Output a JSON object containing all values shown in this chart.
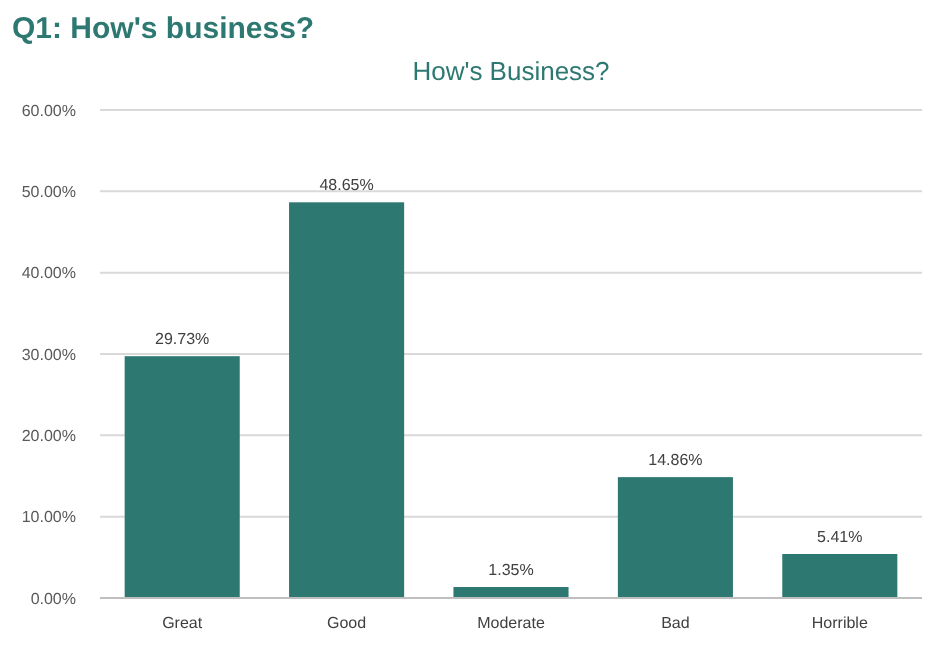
{
  "chart_data": {
    "type": "bar",
    "title": "Q1: How's business?",
    "subtitle": "How's Business?",
    "categories": [
      "Great",
      "Good",
      "Moderate",
      "Bad",
      "Horrible"
    ],
    "values": [
      29.73,
      48.65,
      1.35,
      14.86,
      5.41
    ],
    "value_labels": [
      "29.73%",
      "48.65%",
      "1.35%",
      "14.86%",
      "5.41%"
    ],
    "color": "#2e7872",
    "ylim": [
      0,
      60
    ],
    "yticks": [
      {
        "value": 0,
        "label": "0.00%"
      },
      {
        "value": 10,
        "label": "10.00%"
      },
      {
        "value": 20,
        "label": "20.00%"
      },
      {
        "value": 30,
        "label": "30.00%"
      },
      {
        "value": 40,
        "label": "40.00%"
      },
      {
        "value": 50,
        "label": "50.00%"
      },
      {
        "value": 60,
        "label": "60.00%"
      }
    ],
    "grid": "y"
  }
}
